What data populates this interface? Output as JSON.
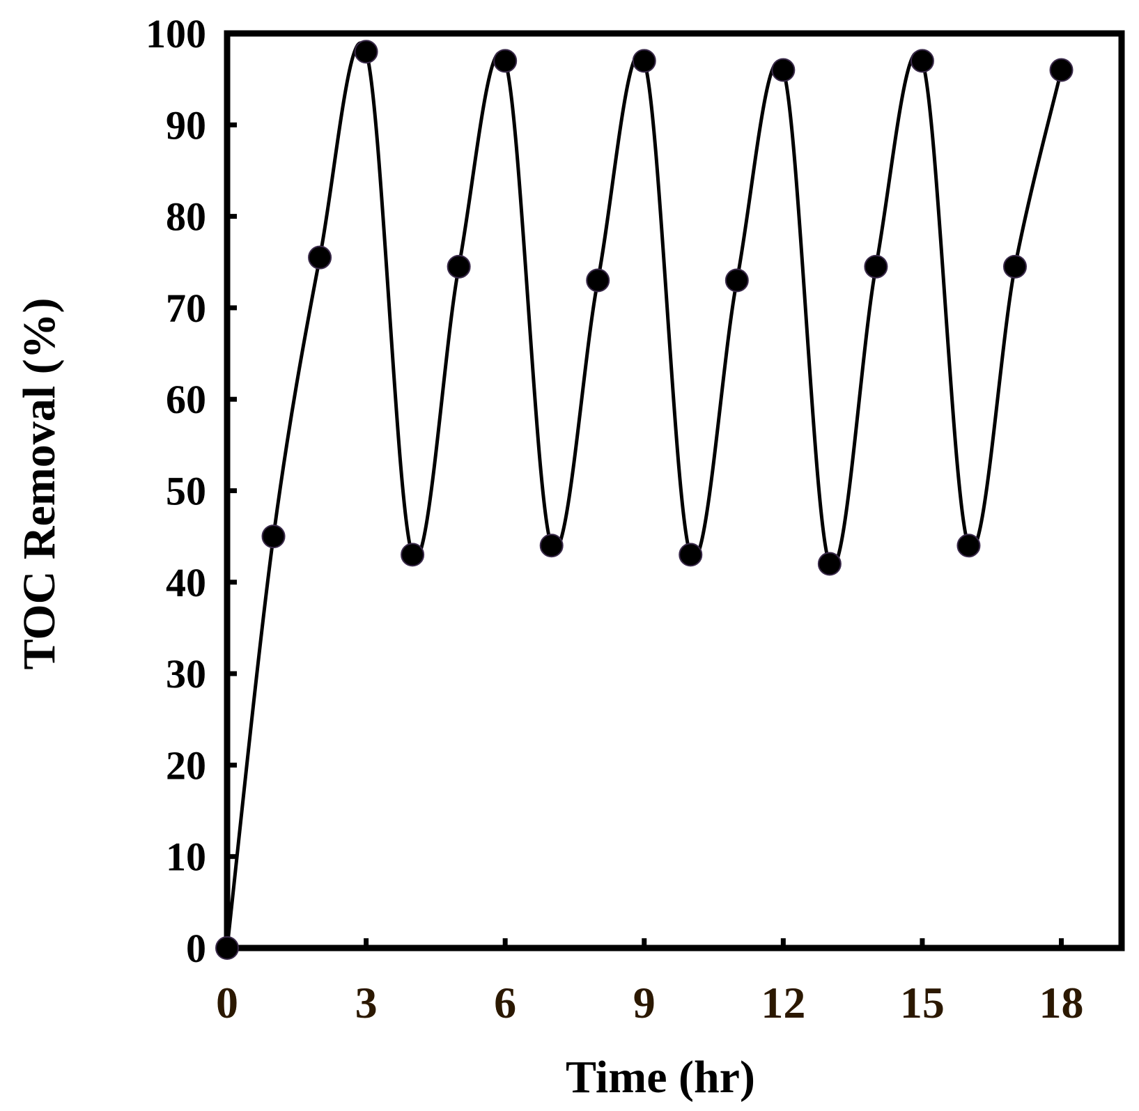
{
  "chart_data": {
    "type": "line",
    "title": "",
    "xlabel": "Time (hr)",
    "ylabel": "TOC Removal (%)",
    "xlim": [
      0,
      19.3
    ],
    "ylim": [
      0,
      100
    ],
    "xticks": [
      0,
      3,
      6,
      9,
      12,
      15,
      18
    ],
    "xtick_labels": [
      "0",
      "3",
      "6",
      "9",
      "12",
      "15",
      "18"
    ],
    "yticks": [
      0,
      10,
      20,
      30,
      40,
      50,
      60,
      70,
      80,
      90,
      100
    ],
    "ytick_labels": [
      "0",
      "10",
      "20",
      "30",
      "40",
      "50",
      "60",
      "70",
      "80",
      "90",
      "100"
    ],
    "grid": false,
    "series": [
      {
        "name": "TOC Removal",
        "x": [
          0,
          1,
          2,
          3,
          4,
          5,
          6,
          7,
          8,
          9,
          10,
          11,
          12,
          13,
          14,
          15,
          16,
          17,
          18
        ],
        "values": [
          0,
          45,
          75.5,
          98,
          43,
          74.5,
          97,
          44,
          73,
          97,
          43,
          73,
          96,
          42,
          74.5,
          97,
          44,
          74.5,
          96
        ],
        "color": "#000000",
        "marker": "circle",
        "line_style": "smooth"
      }
    ]
  }
}
